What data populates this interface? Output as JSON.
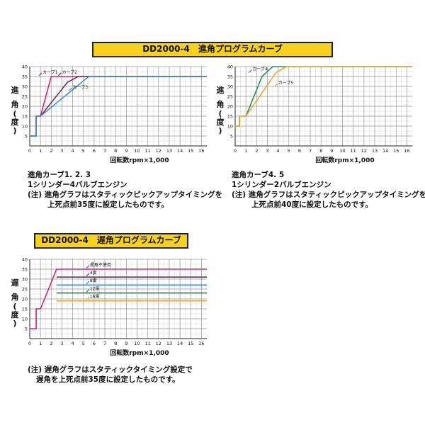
{
  "advance": {
    "banner": "DD2000-4　進角プログラムカーブ",
    "xlabel": "回転数rpm×1,000",
    "ylabel_chars": [
      "進",
      "角",
      "(",
      "度",
      ")"
    ],
    "notes_left": [
      "進角カーブ1. 2. 3",
      "1シリンダー4バルブエンジン",
      "(注) 進角グラフはスタティックピックアップタイミングを",
      "上死点前35度に設定したものです。"
    ],
    "notes_right": [
      "進角カーブ4. 5",
      "1シリンダー2バルブエンジン",
      "(注) 進角グラフはスタティックピックアップタイミングを",
      "上死点前40度に設定したものです。"
    ]
  },
  "retard": {
    "banner": "DD2000-4　遅角プログラムカーブ",
    "xlabel": "回転数rpm×1,000",
    "ylabel_chars": [
      "遅",
      "角",
      "(",
      "度",
      ")"
    ],
    "notes": [
      "(注) 遅角グラフはスタティックタイミング設定で",
      "遅角を上死点前35度に設定したものです。"
    ]
  },
  "chart_data": [
    {
      "type": "line",
      "xlim": [
        0,
        16.5
      ],
      "ylim": [
        0,
        40
      ],
      "xticks": [
        0,
        1,
        2,
        3,
        4,
        5,
        6,
        7,
        8,
        9,
        10,
        11,
        12,
        13,
        14,
        15,
        16
      ],
      "yticks": [
        5,
        10,
        15,
        20,
        25,
        30,
        35,
        40
      ],
      "grid": true,
      "series": [
        {
          "name": "カーブ1",
          "color": "#d4237a",
          "x": [
            0,
            0.6,
            0.6,
            1.0,
            2.0,
            3.0,
            16.5
          ],
          "y": [
            5,
            5,
            15,
            15,
            35,
            35,
            35
          ]
        },
        {
          "name": "カーブ2",
          "color": "#6b2f63",
          "x": [
            0,
            0.6,
            0.6,
            1.0,
            3.5,
            4.5,
            16.5
          ],
          "y": [
            5,
            5,
            15,
            15,
            32,
            35,
            35
          ]
        },
        {
          "name": "カーブ3",
          "color": "#3f8fcf",
          "x": [
            0,
            0.6,
            0.6,
            1.0,
            5.5,
            16.5
          ],
          "y": [
            5,
            5,
            15,
            15,
            35,
            35
          ]
        }
      ],
      "annotations": [
        {
          "text": "カーブ1",
          "x": 1.2,
          "y": 36.5
        },
        {
          "text": "カーブ2",
          "x": 3.0,
          "y": 36.5
        },
        {
          "text": "カーブ3",
          "x": 4.0,
          "y": 29
        }
      ]
    },
    {
      "type": "line",
      "xlim": [
        0,
        16.5
      ],
      "ylim": [
        0,
        40
      ],
      "xticks": [
        0,
        1,
        2,
        3,
        4,
        5,
        6,
        7,
        8,
        9,
        10,
        11,
        12,
        13,
        14,
        15,
        16
      ],
      "yticks": [
        5,
        10,
        15,
        20,
        25,
        30,
        35,
        40
      ],
      "grid": true,
      "series": [
        {
          "name": "カーブ4",
          "color": "#2a8c5a",
          "x": [
            0,
            0.4,
            0.4,
            1.0,
            2.5,
            3.5,
            16.5
          ],
          "y": [
            10,
            10,
            15,
            15,
            35,
            40,
            40
          ]
        },
        {
          "name": "カーブ5",
          "color": "#f0a830",
          "x": [
            0,
            0.4,
            0.4,
            1.0,
            3.8,
            4.8,
            16.5
          ],
          "y": [
            10,
            10,
            15,
            15,
            37,
            40,
            40
          ]
        }
      ],
      "annotations": [
        {
          "text": "カーブ4",
          "x": 1.6,
          "y": 38
        },
        {
          "text": "カーブ5",
          "x": 4.0,
          "y": 31
        }
      ]
    },
    {
      "type": "line",
      "xlim": [
        0,
        16.5
      ],
      "ylim": [
        0,
        40
      ],
      "xticks": [
        0,
        1,
        2,
        3,
        4,
        5,
        6,
        7,
        8,
        9,
        10,
        11,
        12,
        13,
        14,
        15,
        16
      ],
      "yticks": [
        5,
        10,
        15,
        20,
        25,
        30,
        35,
        40
      ],
      "grid": true,
      "series": [
        {
          "name": "遅角不使用",
          "color": "#d4237a",
          "x": [
            0,
            0.6,
            0.6,
            1.0,
            2.5,
            16.5
          ],
          "y": [
            5,
            5,
            15,
            15,
            35,
            35
          ]
        },
        {
          "name": "4度",
          "color": "#6b2f63",
          "x": [
            2.5,
            16.5
          ],
          "y": [
            31,
            31
          ]
        },
        {
          "name": "8度",
          "color": "#3f8fcf",
          "x": [
            2.5,
            16.5
          ],
          "y": [
            27,
            27
          ]
        },
        {
          "name": "12度",
          "color": "#2a8c5a",
          "x": [
            2.5,
            16.5
          ],
          "y": [
            23,
            23
          ]
        },
        {
          "name": "16度",
          "color": "#f0a830",
          "x": [
            2.5,
            16.5
          ],
          "y": [
            19,
            19
          ]
        }
      ],
      "annotations": [
        {
          "text": "遅角不使用",
          "x": 5.6,
          "y": 36.5
        },
        {
          "text": "4度",
          "x": 5.6,
          "y": 32.5
        },
        {
          "text": "8度",
          "x": 5.6,
          "y": 28.5
        },
        {
          "text": "12度",
          "x": 5.6,
          "y": 24.5
        },
        {
          "text": "16度",
          "x": 5.6,
          "y": 20.5
        }
      ]
    }
  ]
}
